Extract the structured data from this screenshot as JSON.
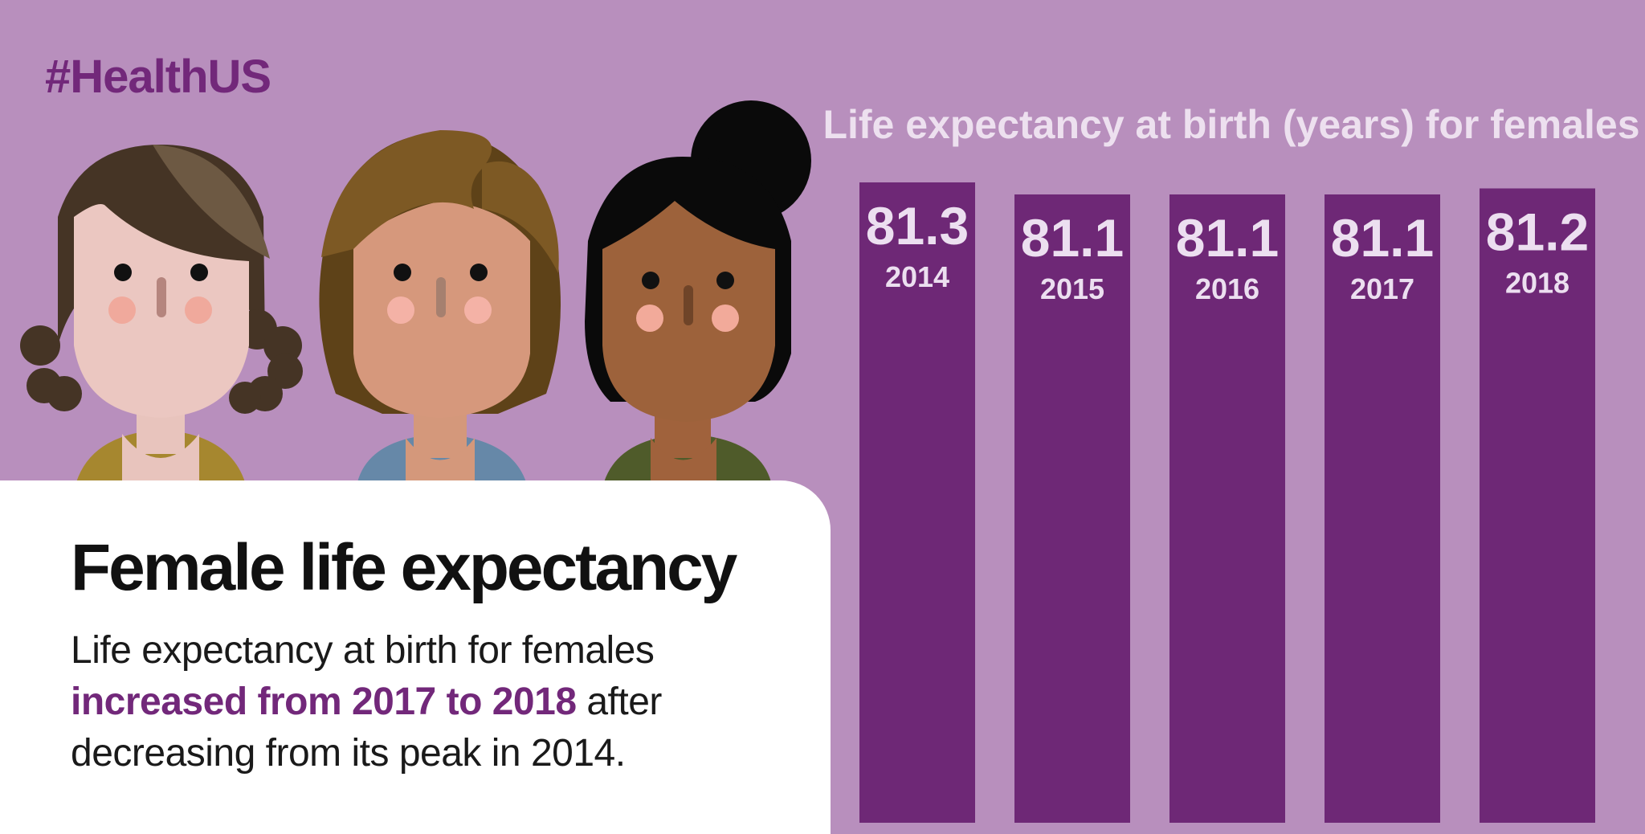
{
  "hashtag": "#HealthUS",
  "card": {
    "heading": "Female life expectancy",
    "body_part1": "Life expectancy at birth for females ",
    "body_highlight": "increased from 2017 to 2018",
    "body_part2": " after decreasing from its peak in 2014."
  },
  "colors": {
    "background": "#b88fbd",
    "bar": "#6e2876",
    "accent_text": "#72287a",
    "label_text": "#ecdff0",
    "card": "#ffffff"
  },
  "illustration": {
    "figures": [
      "woman-figure-curly-dark-hair",
      "woman-figure-light-brown-bob",
      "woman-figure-black-hair-bun"
    ]
  },
  "chart_data": {
    "type": "bar",
    "title": "Life expectancy at birth (years) for females",
    "categories": [
      "2014",
      "2015",
      "2016",
      "2017",
      "2018"
    ],
    "values": [
      81.3,
      81.1,
      81.1,
      81.1,
      81.2
    ],
    "value_labels": [
      "81.3",
      "81.1",
      "81.1",
      "81.1",
      "81.2"
    ],
    "ylabel": "",
    "xlabel": "",
    "grid": false,
    "legend": "none"
  }
}
